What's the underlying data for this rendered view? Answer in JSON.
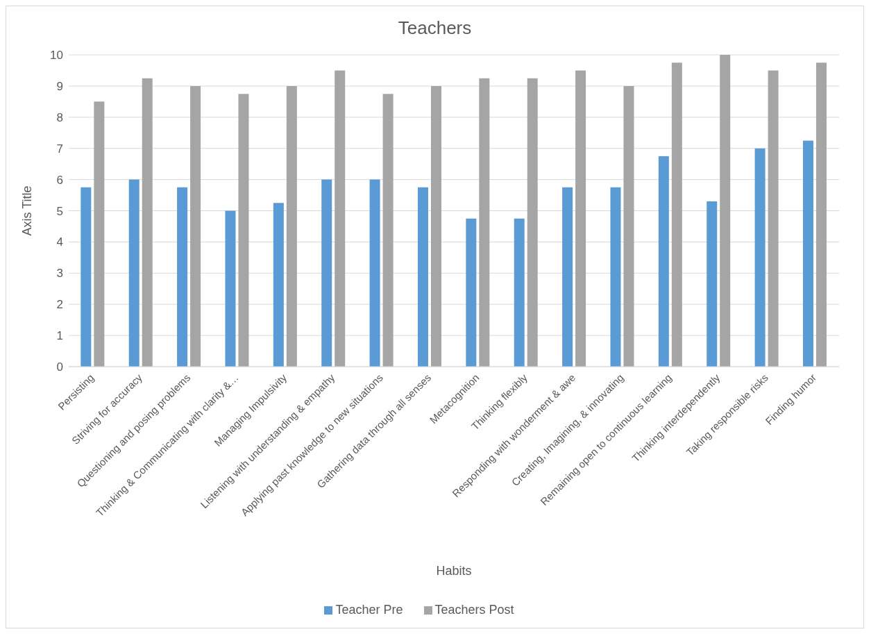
{
  "chart_data": {
    "type": "bar",
    "title": "Teachers",
    "xlabel": "Habits",
    "ylabel": "Axis Title",
    "categories": [
      "Persisting",
      "Striving for accuracy",
      "Questioning and posing problems",
      "Thinking & Communicating with clarity &…",
      "Managing Impulsivity",
      "Listening with understanding & empathy",
      "Applying past knowledge to new situations",
      "Gathering data through all senses",
      "Metacognition",
      "Thinking flexibly",
      "Responding with wonderment & awe",
      "Creating, Imagining, & innovating",
      "Remaining open to continuous learning",
      "Thinking interdependently",
      "Taking responsible risks",
      "Finding humor"
    ],
    "series": [
      {
        "name": "Teacher Pre",
        "color": "#5b9bd5",
        "values": [
          5.75,
          6,
          5.75,
          5,
          5.25,
          6,
          6,
          5.75,
          4.75,
          4.75,
          5.75,
          5.75,
          6.75,
          5.3,
          7,
          7.25
        ]
      },
      {
        "name": "Teachers Post",
        "color": "#a5a5a5",
        "values": [
          8.5,
          9.25,
          9,
          8.75,
          9,
          9.5,
          8.75,
          9,
          9.25,
          9.25,
          9.5,
          9,
          9.75,
          10,
          9.5,
          9.75
        ]
      }
    ],
    "ylim": [
      0,
      10
    ],
    "yticks": [
      0,
      1,
      2,
      3,
      4,
      5,
      6,
      7,
      8,
      9,
      10
    ],
    "grid": "y",
    "legend": "bottom"
  }
}
